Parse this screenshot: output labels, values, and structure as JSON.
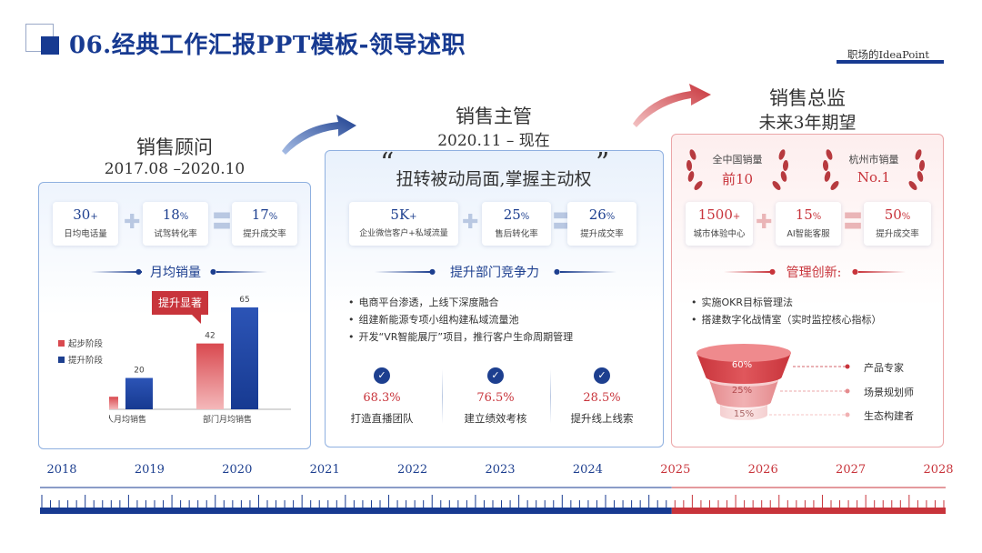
{
  "header": {
    "title": "06.经典工作汇报PPT模板-领导述职",
    "brand": "职场的IdeaPoint"
  },
  "colors": {
    "blue": "#1d3f8f",
    "red": "#c8343b"
  },
  "col1": {
    "title": "销售顾问",
    "period": "2017.08 –2020.10",
    "stats": [
      {
        "value": "30",
        "suffix": "+",
        "label": "日均电话量"
      },
      {
        "value": "18",
        "suffix": "%",
        "label": "试驾转化率"
      },
      {
        "value": "17",
        "suffix": "%",
        "label": "提升成交率"
      }
    ],
    "section_title": "月均销量",
    "callout": "提升显著",
    "chart_data": {
      "type": "bar",
      "categories": [
        "个人月均销售",
        "部门月均销售"
      ],
      "series": [
        {
          "name": "起步阶段",
          "values": [
            8,
            42
          ],
          "color": "#d9494f"
        },
        {
          "name": "提升阶段",
          "values": [
            20,
            65
          ],
          "color": "#1d3f8f"
        }
      ],
      "legend": "left"
    }
  },
  "col2": {
    "title": "销售主管",
    "period": "2020.11 – 现在",
    "quote": "扭转被动局面,掌握主动权",
    "stats": [
      {
        "value": "5K",
        "suffix": "+",
        "label": "企业微信客户+私域流量"
      },
      {
        "value": "25",
        "suffix": "%",
        "label": "售后转化率"
      },
      {
        "value": "26",
        "suffix": "%",
        "label": "提升成交率"
      }
    ],
    "section_title": "提升部门竞争力",
    "bullets": [
      "电商平台渗透，上线下深度融合",
      "组建新能源专项小组构建私域流量池",
      "开发“VR智能展厅”项目，推行客户生命周期管理"
    ],
    "kpis": [
      {
        "value": "68.3%",
        "label": "打造直播团队"
      },
      {
        "value": "76.5%",
        "label": "建立绩效考核"
      },
      {
        "value": "28.5%",
        "label": "提升线上线索"
      }
    ]
  },
  "col3": {
    "title": "销售总监",
    "subtitle": "未来3年期望",
    "laurels": [
      {
        "label": "全中国销量",
        "value": "前10"
      },
      {
        "label": "杭州市销量",
        "value": "No.1"
      }
    ],
    "stats": [
      {
        "value": "1500",
        "suffix": "+",
        "label": "城市体验中心"
      },
      {
        "value": "15",
        "suffix": "%",
        "label": "AI智能客服"
      },
      {
        "value": "50",
        "suffix": "%",
        "label": "提升成交率"
      }
    ],
    "section_title": "管理创新:",
    "bullets": [
      "实施OKR目标管理法",
      "搭建数字化战情室（实时监控核心指标）"
    ],
    "funnel": [
      {
        "percent": "60%",
        "label": "产品专家"
      },
      {
        "percent": "25%",
        "label": "场景规划师"
      },
      {
        "percent": "15%",
        "label": "生态构建者"
      }
    ]
  },
  "timeline": {
    "years": [
      "2018",
      "2019",
      "2020",
      "2021",
      "2022",
      "2023",
      "2024",
      "2025",
      "2026",
      "2027",
      "2028"
    ],
    "split_year": "2025"
  }
}
